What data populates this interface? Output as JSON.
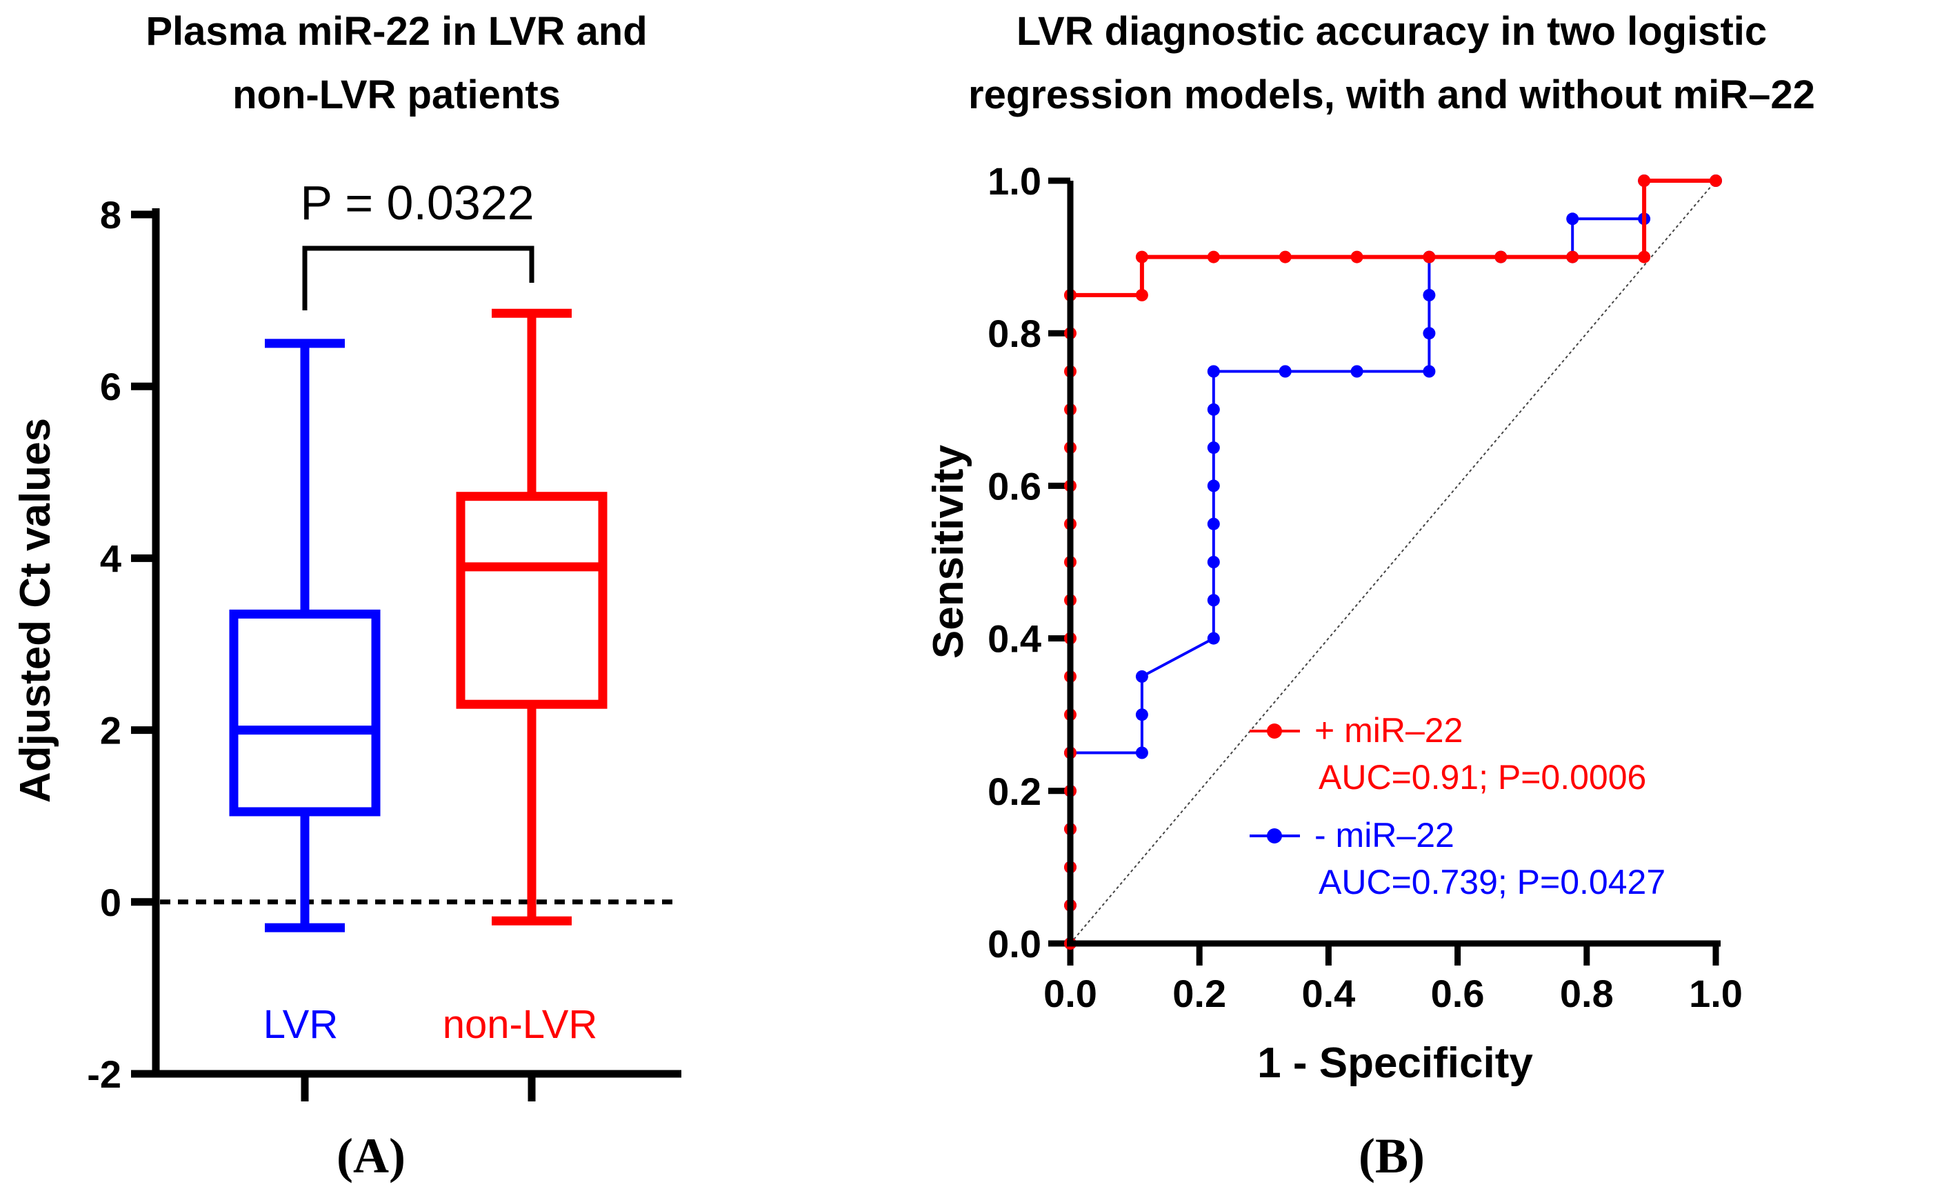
{
  "colors": {
    "lvr": "#0000ff",
    "non_lvr": "#ff0000",
    "axis": "#000000"
  },
  "panels": {
    "a_label": "(A)",
    "b_label": "(B)"
  },
  "chart_data": [
    {
      "type": "box",
      "title_lines": [
        "Plasma miR-22 in LVR and",
        "non-LVR patients"
      ],
      "ylabel": "Adjusted Ct values",
      "xlabel": "",
      "ylim": [
        -2,
        8
      ],
      "yticks": [
        "-2",
        "0",
        "2",
        "4",
        "6",
        "8"
      ],
      "reference_line": 0,
      "significance_label": "P = 0.0322",
      "categories": [
        "LVR",
        "non-LVR"
      ],
      "series": [
        {
          "name": "LVR",
          "color": "#0000ff",
          "min": -0.3,
          "q1": 1.05,
          "median": 2.0,
          "q3": 3.35,
          "max": 6.5
        },
        {
          "name": "non-LVR",
          "color": "#ff0000",
          "min": -0.22,
          "q1": 2.3,
          "median": 3.9,
          "q3": 4.72,
          "max": 6.85
        }
      ]
    },
    {
      "type": "line",
      "title_lines": [
        "LVR diagnostic accuracy in two logistic",
        "regression models, with and without miR–22"
      ],
      "xlabel": "1 - Specificity",
      "ylabel": "Sensitivity",
      "xlim": [
        0,
        1
      ],
      "ylim": [
        0,
        1
      ],
      "xticks": [
        "0.0",
        "0.2",
        "0.4",
        "0.6",
        "0.8",
        "1.0"
      ],
      "yticks": [
        "0.0",
        "0.2",
        "0.4",
        "0.6",
        "0.8",
        "1.0"
      ],
      "legend_position": "lower-right",
      "diagonal_reference": true,
      "series": [
        {
          "name": "+ miR–22",
          "annotation": "AUC=0.91; P=0.0006",
          "color": "#ff0000",
          "x": [
            0,
            0,
            0,
            0,
            0,
            0,
            0,
            0,
            0,
            0,
            0,
            0,
            0,
            0,
            0,
            0,
            0,
            0,
            0,
            0.111,
            0.111,
            0.222,
            0.333,
            0.444,
            0.556,
            0.667,
            0.778,
            0.889,
            0.889,
            1
          ],
          "y": [
            0,
            0.05,
            0.1,
            0.15,
            0.2,
            0.25,
            0.3,
            0.35,
            0.4,
            0.45,
            0.5,
            0.55,
            0.6,
            0.65,
            0.7,
            0.75,
            0.8,
            0.85,
            0.85,
            0.85,
            0.9,
            0.9,
            0.9,
            0.9,
            0.9,
            0.9,
            0.9,
            0.9,
            1.0,
            1.0
          ]
        },
        {
          "name": "- miR–22",
          "annotation": "AUC=0.739; P=0.0427",
          "color": "#0000ff",
          "x": [
            0,
            0,
            0,
            0,
            0,
            0,
            0.111,
            0.111,
            0.111,
            0.222,
            0.222,
            0.222,
            0.222,
            0.222,
            0.222,
            0.222,
            0.222,
            0.333,
            0.444,
            0.556,
            0.556,
            0.556,
            0.556,
            0.667,
            0.778,
            0.778,
            0.889,
            0.889,
            1
          ],
          "y": [
            0,
            0.05,
            0.1,
            0.15,
            0.2,
            0.25,
            0.25,
            0.3,
            0.35,
            0.4,
            0.45,
            0.5,
            0.55,
            0.6,
            0.65,
            0.7,
            0.75,
            0.75,
            0.75,
            0.75,
            0.8,
            0.85,
            0.9,
            0.9,
            0.9,
            0.95,
            0.95,
            1.0,
            1.0
          ]
        }
      ]
    }
  ]
}
